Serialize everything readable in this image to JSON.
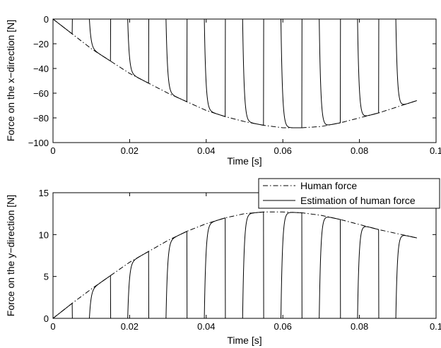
{
  "chart_data": [
    {
      "type": "line",
      "xlabel": "Time [s]",
      "ylabel": "Force on the x−direction [N]",
      "xlim": [
        0,
        0.1
      ],
      "ylim": [
        -100,
        0
      ],
      "xticks": [
        0,
        0.02,
        0.04,
        0.06,
        0.08,
        0.1
      ],
      "xtick_labels": [
        "0",
        "0.02",
        "0.04",
        "0.06",
        "0.08",
        "0.1"
      ],
      "yticks": [
        0,
        -20,
        -40,
        -60,
        -80,
        -100
      ],
      "ytick_labels": [
        "0",
        "−20",
        "−40",
        "−60",
        "−80",
        "−100"
      ],
      "grid": false,
      "series": [
        {
          "name": "Human force",
          "style": "dash-dot",
          "x": [
            0,
            0.005,
            0.01,
            0.015,
            0.02,
            0.025,
            0.03,
            0.035,
            0.04,
            0.045,
            0.05,
            0.055,
            0.06,
            0.065,
            0.07,
            0.075,
            0.08,
            0.085,
            0.09,
            0.095
          ],
          "y": [
            0,
            -12,
            -24,
            -34,
            -44,
            -52,
            -60,
            -67,
            -74,
            -79,
            -83,
            -86,
            -88,
            -88,
            -87,
            -84,
            -80,
            -76,
            -71,
            -66
          ]
        },
        {
          "name": "Estimation of human force",
          "style": "solid",
          "pulse_period": 0.01,
          "zero_intervals": [
            [
              0.005,
              0.0095
            ],
            [
              0.015,
              0.0195
            ],
            [
              0.025,
              0.0295
            ],
            [
              0.035,
              0.0395
            ],
            [
              0.045,
              0.0495
            ],
            [
              0.055,
              0.0595
            ],
            [
              0.065,
              0.0695
            ],
            [
              0.075,
              0.0795
            ],
            [
              0.085,
              0.0895
            ]
          ],
          "end_x": 0.095
        }
      ]
    },
    {
      "type": "line",
      "xlabel": "Time [s]",
      "ylabel": "Force on the y−direction [N]",
      "xlim": [
        0,
        0.1
      ],
      "ylim": [
        0,
        15
      ],
      "xticks": [
        0,
        0.02,
        0.04,
        0.06,
        0.08,
        0.1
      ],
      "xtick_labels": [
        "0",
        "0.02",
        "0.04",
        "0.06",
        "0.08",
        "0.1"
      ],
      "yticks": [
        0,
        5,
        10,
        15
      ],
      "ytick_labels": [
        "0",
        "5",
        "10",
        "15"
      ],
      "grid": false,
      "legend": {
        "position": "top-right",
        "entries": [
          {
            "label": "Human force",
            "style": "dash-dot"
          },
          {
            "label": "Estimation of human force",
            "style": "solid"
          }
        ]
      },
      "series": [
        {
          "name": "Human force",
          "style": "dash-dot",
          "x": [
            0,
            0.005,
            0.01,
            0.015,
            0.02,
            0.025,
            0.03,
            0.035,
            0.04,
            0.045,
            0.05,
            0.055,
            0.06,
            0.065,
            0.07,
            0.075,
            0.08,
            0.085,
            0.09,
            0.095
          ],
          "y": [
            0,
            1.8,
            3.5,
            5.1,
            6.7,
            8.0,
            9.3,
            10.4,
            11.3,
            12.0,
            12.5,
            12.7,
            12.7,
            12.6,
            12.3,
            11.8,
            11.2,
            10.6,
            10.1,
            9.6
          ]
        },
        {
          "name": "Estimation of human force",
          "style": "solid",
          "pulse_period": 0.01,
          "zero_intervals": [
            [
              0.005,
              0.0095
            ],
            [
              0.015,
              0.0195
            ],
            [
              0.025,
              0.0295
            ],
            [
              0.035,
              0.0395
            ],
            [
              0.045,
              0.0495
            ],
            [
              0.055,
              0.0595
            ],
            [
              0.065,
              0.0695
            ],
            [
              0.075,
              0.0795
            ],
            [
              0.085,
              0.0895
            ]
          ],
          "end_x": 0.095
        }
      ]
    }
  ]
}
